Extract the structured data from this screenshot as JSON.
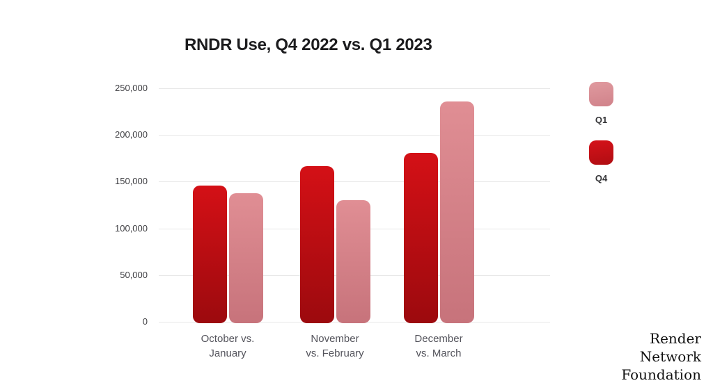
{
  "chart_data": {
    "type": "bar",
    "title": "RNDR Use, Q4 2022 vs. Q1 2023",
    "categories": [
      [
        "October vs.",
        "January"
      ],
      [
        "November",
        "vs. February"
      ],
      [
        "December",
        "vs. March"
      ]
    ],
    "series": [
      {
        "name": "Q4",
        "values": [
          146000,
          167000,
          181000
        ],
        "color_top": "#d41016",
        "color_bottom": "#9c0a0e"
      },
      {
        "name": "Q1",
        "values": [
          138000,
          130000,
          236000
        ],
        "color_top": "#e08e94",
        "color_bottom": "#c7737b"
      }
    ],
    "legend": [
      {
        "label": "Q1",
        "color_top": "#e09a9f",
        "color_bottom": "#d0828a"
      },
      {
        "label": "Q4",
        "color_top": "#d5121a",
        "color_bottom": "#b00d12"
      }
    ],
    "legend_position": "right",
    "grid": true,
    "ylim": [
      0,
      250000
    ],
    "y_ticks": [
      0,
      50000,
      100000,
      150000,
      200000,
      250000
    ],
    "y_tick_labels": [
      "0",
      "50,000",
      "100,000",
      "150,000",
      "200,000",
      "250,000"
    ]
  },
  "brand": {
    "lines": [
      "Render",
      "Network",
      "Foundation"
    ]
  }
}
